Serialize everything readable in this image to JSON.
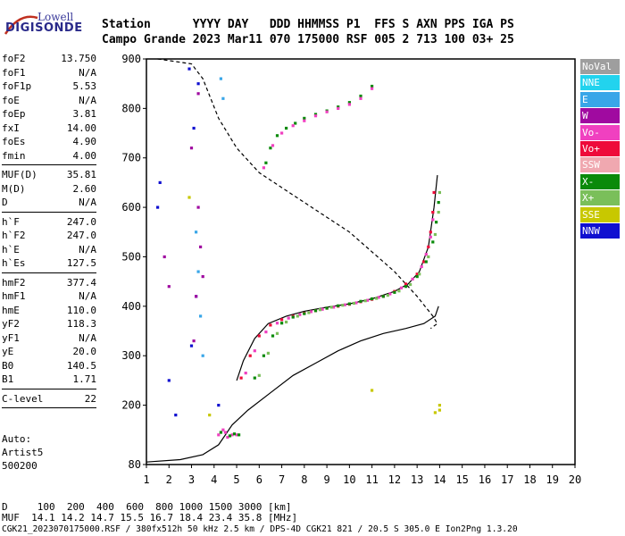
{
  "logo": {
    "top": "Lowell",
    "bottom": "DIGISONDE"
  },
  "header": {
    "line1": "Station      YYYY DAY   DDD HHMMSS P1  FFS S AXN PPS IGA PS",
    "line2": "Campo Grande 2023 Mar11 070 175000 RSF 005 2 713 100 03+ 25"
  },
  "params_block1": [
    {
      "k": "foF2",
      "v": "13.750"
    },
    {
      "k": "foF1",
      "v": "N/A"
    },
    {
      "k": "foF1p",
      "v": "5.53"
    },
    {
      "k": "foE",
      "v": "N/A"
    },
    {
      "k": "foEp",
      "v": "3.81"
    },
    {
      "k": "fxI",
      "v": "14.00"
    },
    {
      "k": "foEs",
      "v": "4.90"
    },
    {
      "k": "fmin",
      "v": "4.00"
    }
  ],
  "params_block2": [
    {
      "k": "MUF(D)",
      "v": "35.81"
    },
    {
      "k": "M(D)",
      "v": "2.60"
    },
    {
      "k": "D",
      "v": "N/A"
    }
  ],
  "params_block3": [
    {
      "k": "h`F",
      "v": "247.0"
    },
    {
      "k": "h`F2",
      "v": "247.0"
    },
    {
      "k": "h`E",
      "v": "N/A"
    },
    {
      "k": "h`Es",
      "v": "127.5"
    }
  ],
  "params_block4": [
    {
      "k": "hmF2",
      "v": "377.4"
    },
    {
      "k": "hmF1",
      "v": "N/A"
    },
    {
      "k": "hmE",
      "v": "110.0"
    },
    {
      "k": "yF2",
      "v": "118.3"
    },
    {
      "k": "yF1",
      "v": "N/A"
    },
    {
      "k": "yE",
      "v": "20.0"
    },
    {
      "k": "B0",
      "v": "140.5"
    },
    {
      "k": "B1",
      "v": "1.71"
    }
  ],
  "params_block5": [
    {
      "k": "C-level",
      "v": "22"
    }
  ],
  "auto": {
    "line1": "Auto:",
    "line2": "Artist5",
    "line3": "500200"
  },
  "legend": [
    {
      "label": "NoVal",
      "color": "#9e9e9e"
    },
    {
      "label": "NNE",
      "color": "#22d3ee"
    },
    {
      "label": "E",
      "color": "#39a6e8"
    },
    {
      "label": "W",
      "color": "#a00aa0"
    },
    {
      "label": "Vo-",
      "color": "#f040c0"
    },
    {
      "label": "Vo+",
      "color": "#ee0a3a"
    },
    {
      "label": "SSW",
      "color": "#f0a8b0"
    },
    {
      "label": "X-",
      "color": "#0a8a0a"
    },
    {
      "label": "X+",
      "color": "#7abf5a"
    },
    {
      "label": "SSE",
      "color": "#c8c800"
    },
    {
      "label": "NNW",
      "color": "#1010d0"
    }
  ],
  "bottom": {
    "line1": "D     100  200  400  600  800 1000 1500 3000 [km]",
    "line2": "MUF  14.1 14.2 14.7 15.5 16.7 18.4 23.4 35.8 [MHz]",
    "line3": "CGK21_2023070175000.RSF / 380fx512h 50 kHz 2.5 km / DPS-4D CGK21 821 / 20.5 S 305.0 E Ion2Png 1.3.20"
  },
  "chart_data": {
    "type": "scatter",
    "xlabel": "",
    "ylabel": "",
    "xlim": [
      1,
      20
    ],
    "ylim": [
      80,
      900
    ],
    "x_ticks": [
      1,
      2,
      3,
      4,
      5,
      6,
      7,
      8,
      9,
      10,
      11,
      12,
      13,
      14,
      15,
      16,
      17,
      18,
      19,
      20
    ],
    "y_ticks": [
      80,
      200,
      300,
      400,
      500,
      600,
      700,
      800,
      900
    ],
    "series": [
      {
        "kind": "line",
        "style": "dashed",
        "color": "#000",
        "x": [
          1.5,
          3.0,
          3.5,
          4.2,
          5.0,
          6.0,
          7.0,
          8.0,
          9.0,
          10.0,
          11.0,
          12.0,
          13.0,
          13.7,
          13.9,
          13.6
        ],
        "y": [
          900,
          890,
          860,
          780,
          720,
          670,
          640,
          610,
          580,
          550,
          510,
          470,
          420,
          380,
          365,
          355
        ]
      },
      {
        "kind": "line",
        "style": "solid",
        "color": "#000",
        "x": [
          1.0,
          2.5,
          3.5,
          4.2,
          4.8,
          5.5,
          6.5,
          7.5,
          8.5,
          9.5,
          10.5,
          11.5,
          12.5,
          13.3,
          13.8,
          13.95
        ],
        "y": [
          85,
          90,
          100,
          120,
          160,
          190,
          225,
          260,
          285,
          310,
          330,
          345,
          355,
          365,
          380,
          400
        ]
      },
      {
        "kind": "line",
        "style": "solid",
        "color": "#000",
        "x": [
          5.0,
          5.3,
          5.8,
          6.4,
          7.2,
          8.0,
          9.0,
          10.0,
          11.0,
          12.0,
          12.6,
          13.1,
          13.5,
          13.75,
          13.9
        ],
        "y": [
          250,
          290,
          335,
          365,
          380,
          390,
          398,
          405,
          415,
          430,
          445,
          470,
          520,
          600,
          665
        ]
      },
      {
        "kind": "points",
        "color": "#ee0a3a",
        "x": [
          5.2,
          5.6,
          6.0,
          6.5,
          7.0,
          7.5,
          8.0,
          8.5,
          9.0,
          9.5,
          10.0,
          10.5,
          11.0,
          11.5,
          12.0,
          12.5,
          13.0,
          13.3,
          13.5,
          13.6,
          13.7,
          13.75
        ],
        "y": [
          255,
          300,
          340,
          362,
          373,
          380,
          386,
          391,
          396,
          400,
          404,
          409,
          414,
          420,
          430,
          445,
          465,
          490,
          520,
          550,
          590,
          630
        ]
      },
      {
        "kind": "points",
        "color": "#f040c0",
        "x": [
          5.4,
          5.8,
          6.3,
          6.8,
          7.3,
          7.8,
          8.3,
          8.8,
          9.3,
          9.8,
          10.3,
          10.8,
          11.3,
          11.8,
          12.3,
          12.8,
          13.2,
          13.4,
          13.6,
          13.7
        ],
        "y": [
          265,
          310,
          348,
          366,
          376,
          383,
          389,
          394,
          398,
          403,
          407,
          412,
          418,
          425,
          437,
          455,
          480,
          505,
          540,
          575
        ]
      },
      {
        "kind": "points",
        "color": "#0a8a0a",
        "x": [
          5.8,
          6.2,
          6.6,
          7.0,
          7.5,
          8.0,
          8.5,
          9.0,
          9.5,
          10.0,
          10.5,
          11.0,
          11.5,
          12.0,
          12.5,
          13.0,
          13.4,
          13.7,
          13.85,
          13.95
        ],
        "y": [
          255,
          300,
          340,
          366,
          378,
          385,
          391,
          396,
          401,
          405,
          410,
          415,
          420,
          428,
          440,
          460,
          490,
          530,
          570,
          610
        ]
      },
      {
        "kind": "points",
        "color": "#7abf5a",
        "x": [
          6.0,
          6.4,
          6.8,
          7.2,
          7.7,
          8.2,
          8.7,
          9.2,
          9.7,
          10.2,
          10.7,
          11.2,
          11.7,
          12.2,
          12.7,
          13.1,
          13.5,
          13.8,
          13.95,
          14.0
        ],
        "y": [
          260,
          305,
          345,
          368,
          380,
          387,
          393,
          398,
          402,
          406,
          411,
          416,
          422,
          431,
          444,
          465,
          500,
          545,
          590,
          630
        ]
      },
      {
        "kind": "points",
        "color": "#0a8a0a",
        "x": [
          6.3,
          6.5,
          6.8,
          7.2,
          7.6,
          8.0,
          8.5,
          9.0,
          9.5,
          10.0,
          10.5,
          11.0
        ],
        "y": [
          690,
          720,
          745,
          760,
          770,
          780,
          788,
          795,
          803,
          812,
          825,
          845
        ]
      },
      {
        "kind": "points",
        "color": "#f040c0",
        "x": [
          6.2,
          6.6,
          7.0,
          7.5,
          8.0,
          8.5,
          9.0,
          9.5,
          10.0,
          10.5,
          11.0
        ],
        "y": [
          680,
          725,
          750,
          765,
          775,
          785,
          793,
          800,
          808,
          820,
          840
        ]
      },
      {
        "kind": "points",
        "color": "#f040c0",
        "x": [
          4.2,
          4.5,
          4.8,
          5.0,
          4.4,
          4.6
        ],
        "y": [
          140,
          145,
          140,
          140,
          150,
          135
        ]
      },
      {
        "kind": "points",
        "color": "#0a8a0a",
        "x": [
          4.3,
          4.7,
          5.1,
          4.9
        ],
        "y": [
          145,
          138,
          140,
          142
        ]
      },
      {
        "kind": "points",
        "color": "#1010d0",
        "x": [
          1.5,
          1.6,
          2.0,
          2.3,
          2.9,
          3.0,
          3.3,
          3.1,
          3.2,
          4.2
        ],
        "y": [
          600,
          650,
          250,
          180,
          880,
          320,
          850,
          760,
          420,
          200
        ]
      },
      {
        "kind": "points",
        "color": "#a00aa0",
        "x": [
          1.8,
          2.0,
          3.1,
          3.2,
          3.3,
          3.4,
          3.5,
          3.3,
          3.0
        ],
        "y": [
          500,
          440,
          330,
          420,
          600,
          520,
          460,
          830,
          720
        ]
      },
      {
        "kind": "points",
        "color": "#39a6e8",
        "x": [
          3.2,
          3.4,
          4.3,
          4.4,
          3.3,
          3.5
        ],
        "y": [
          550,
          380,
          860,
          820,
          470,
          300
        ]
      },
      {
        "kind": "points",
        "color": "#c8c800",
        "x": [
          2.9,
          3.8,
          14.0,
          14.0,
          11.0,
          13.8
        ],
        "y": [
          620,
          180,
          190,
          200,
          230,
          185
        ]
      }
    ]
  }
}
